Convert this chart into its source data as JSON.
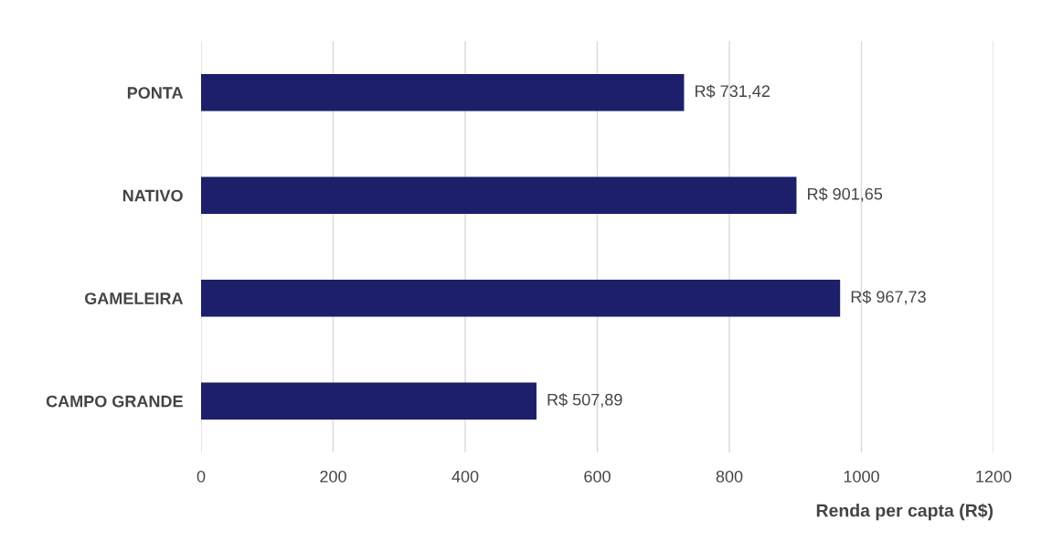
{
  "chart_data": {
    "type": "bar",
    "orientation": "horizontal",
    "categories": [
      "PONTA",
      "NATIVO",
      "GAMELEIRA",
      "CAMPO GRANDE"
    ],
    "values": [
      731.42,
      901.65,
      967.73,
      507.89
    ],
    "value_labels": [
      "R$ 731,42",
      "R$ 901,65",
      "R$ 967,73",
      "R$ 507,89"
    ],
    "color": "#1e1f6b",
    "xlabel": "Renda per capta (R$)",
    "xlim": [
      0,
      1200
    ],
    "xticks": [
      0,
      200,
      400,
      600,
      800,
      1000,
      1200
    ],
    "grid": "x",
    "legend": false
  }
}
